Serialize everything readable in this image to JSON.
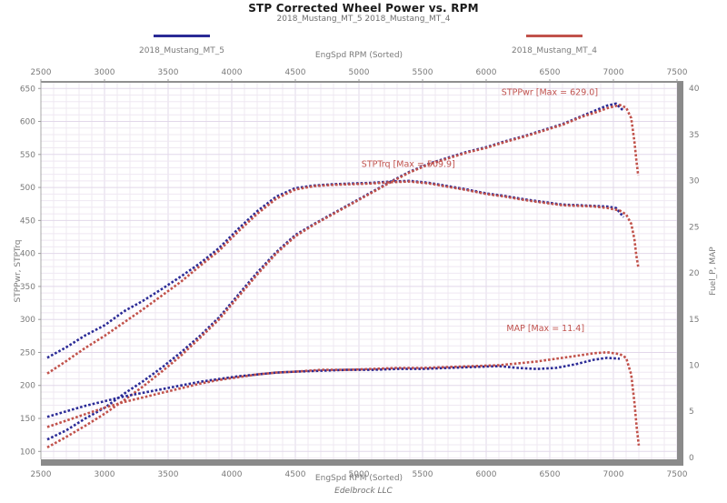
{
  "header": {
    "title": "STP Corrected Wheel Power vs. RPM",
    "subtitle": "2018_Mustang_MT_5 2018_Mustang_MT_4"
  },
  "footer": {
    "text": "Edelbrock LLC"
  },
  "chart_data": {
    "type": "scatter",
    "title": "STP Corrected Wheel Power vs. RPM",
    "subtitle": "2018_Mustang_MT_5 2018_Mustang_MT_4",
    "xlabel_top": "EngSpd RPM  (Sorted)",
    "xlabel_bottom": "EngSpd RPM  (Sorted)",
    "ylabel_left": "STPPwr, STPTrq",
    "ylabel_right": "Fuel_P, MAP",
    "grid": true,
    "legend_position": "top",
    "legend": [
      {
        "label": "2018_Mustang_MT_5",
        "color": "#2b2b96"
      },
      {
        "label": "2018_Mustang_MT_4",
        "color": "#c1524b"
      }
    ],
    "x_axis": {
      "min": 2500,
      "max": 7500,
      "ticks": [
        2500,
        3000,
        3500,
        4000,
        4500,
        5000,
        5500,
        6000,
        6500,
        7000,
        7500
      ],
      "minor_step": 100
    },
    "left_axis": {
      "min": 88,
      "max": 660,
      "ticks": [
        100,
        150,
        200,
        250,
        300,
        350,
        400,
        450,
        500,
        550,
        600,
        650
      ],
      "minor_step": 10
    },
    "right_axis": {
      "min": -0.2,
      "max": 40.7,
      "ticks": [
        0,
        5,
        10,
        15,
        20,
        25,
        30,
        35,
        40
      ]
    },
    "annotations": [
      {
        "text": "STPPwr  [Max = 629.0]",
        "x": 6120,
        "y": 640,
        "axis": "left",
        "color": "#c0524e"
      },
      {
        "text": "STPTrq  [Max = 509.9]",
        "x": 5020,
        "y": 531,
        "axis": "left",
        "color": "#c0524e"
      },
      {
        "text": "MAP   [Max = 11.4]",
        "x": 6160,
        "y": 13.7,
        "axis": "right",
        "color": "#c0524e"
      }
    ],
    "series": [
      {
        "name": "STPPwr 2018_Mustang_MT_5",
        "axis": "left",
        "color": "#2b2b96",
        "points": [
          [
            2550,
            118
          ],
          [
            2700,
            132
          ],
          [
            2850,
            150
          ],
          [
            3000,
            166
          ],
          [
            3150,
            187
          ],
          [
            3300,
            206
          ],
          [
            3450,
            227
          ],
          [
            3600,
            250
          ],
          [
            3750,
            275
          ],
          [
            3900,
            303
          ],
          [
            4050,
            337
          ],
          [
            4200,
            371
          ],
          [
            4350,
            402
          ],
          [
            4500,
            428
          ],
          [
            4650,
            445
          ],
          [
            4800,
            461
          ],
          [
            4950,
            477
          ],
          [
            5100,
            493
          ],
          [
            5250,
            509
          ],
          [
            5400,
            524
          ],
          [
            5550,
            536
          ],
          [
            5700,
            545
          ],
          [
            5850,
            554
          ],
          [
            6000,
            561
          ],
          [
            6150,
            570
          ],
          [
            6300,
            578
          ],
          [
            6450,
            587
          ],
          [
            6600,
            596
          ],
          [
            6750,
            608
          ],
          [
            6850,
            616
          ],
          [
            6950,
            624
          ],
          [
            7020,
            627
          ],
          [
            7080,
            616
          ]
        ]
      },
      {
        "name": "STPPwr 2018_Mustang_MT_4",
        "axis": "left",
        "color": "#c1524b",
        "points": [
          [
            2550,
            106
          ],
          [
            2700,
            122
          ],
          [
            2850,
            139
          ],
          [
            3000,
            157
          ],
          [
            3150,
            177
          ],
          [
            3300,
            198
          ],
          [
            3450,
            221
          ],
          [
            3600,
            245
          ],
          [
            3750,
            272
          ],
          [
            3900,
            300
          ],
          [
            4050,
            334
          ],
          [
            4200,
            368
          ],
          [
            4350,
            400
          ],
          [
            4500,
            426
          ],
          [
            4650,
            444
          ],
          [
            4800,
            460
          ],
          [
            4950,
            476
          ],
          [
            5100,
            492
          ],
          [
            5250,
            508
          ],
          [
            5400,
            523
          ],
          [
            5550,
            535
          ],
          [
            5700,
            544
          ],
          [
            5850,
            553
          ],
          [
            6000,
            560
          ],
          [
            6150,
            569
          ],
          [
            6300,
            577
          ],
          [
            6450,
            586
          ],
          [
            6600,
            595
          ],
          [
            6750,
            607
          ],
          [
            6850,
            613
          ],
          [
            6950,
            620
          ],
          [
            7050,
            625
          ],
          [
            7100,
            621
          ],
          [
            7140,
            605
          ],
          [
            7165,
            570
          ],
          [
            7180,
            542
          ],
          [
            7195,
            518
          ]
        ]
      },
      {
        "name": "STPTrq 2018_Mustang_MT_5",
        "axis": "left",
        "color": "#2b2b96",
        "points": [
          [
            2550,
            242
          ],
          [
            2700,
            258
          ],
          [
            2850,
            276
          ],
          [
            3000,
            291
          ],
          [
            3150,
            312
          ],
          [
            3300,
            328
          ],
          [
            3450,
            346
          ],
          [
            3600,
            365
          ],
          [
            3750,
            385
          ],
          [
            3900,
            408
          ],
          [
            4050,
            437
          ],
          [
            4200,
            464
          ],
          [
            4350,
            486
          ],
          [
            4500,
            499
          ],
          [
            4650,
            503
          ],
          [
            4800,
            505
          ],
          [
            4950,
            506
          ],
          [
            5100,
            507
          ],
          [
            5250,
            509
          ],
          [
            5400,
            510
          ],
          [
            5550,
            507
          ],
          [
            5700,
            502
          ],
          [
            5850,
            497
          ],
          [
            6000,
            491
          ],
          [
            6150,
            487
          ],
          [
            6300,
            482
          ],
          [
            6450,
            478
          ],
          [
            6600,
            474
          ],
          [
            6750,
            473
          ],
          [
            6850,
            472
          ],
          [
            6950,
            471
          ],
          [
            7020,
            469
          ],
          [
            7080,
            455
          ]
        ]
      },
      {
        "name": "STPTrq 2018_Mustang_MT_4",
        "axis": "left",
        "color": "#c1524b",
        "points": [
          [
            2550,
            218
          ],
          [
            2700,
            237
          ],
          [
            2850,
            257
          ],
          [
            3000,
            275
          ],
          [
            3150,
            295
          ],
          [
            3300,
            315
          ],
          [
            3450,
            336
          ],
          [
            3600,
            357
          ],
          [
            3750,
            381
          ],
          [
            3900,
            404
          ],
          [
            4050,
            433
          ],
          [
            4200,
            460
          ],
          [
            4350,
            483
          ],
          [
            4500,
            497
          ],
          [
            4650,
            502
          ],
          [
            4800,
            504
          ],
          [
            4950,
            505
          ],
          [
            5100,
            506
          ],
          [
            5250,
            508
          ],
          [
            5400,
            509
          ],
          [
            5550,
            506
          ],
          [
            5700,
            501
          ],
          [
            5850,
            496
          ],
          [
            6000,
            490
          ],
          [
            6150,
            486
          ],
          [
            6300,
            481
          ],
          [
            6450,
            477
          ],
          [
            6600,
            473
          ],
          [
            6750,
            472
          ],
          [
            6850,
            471
          ],
          [
            6950,
            469
          ],
          [
            7050,
            465
          ],
          [
            7100,
            459
          ],
          [
            7140,
            445
          ],
          [
            7165,
            422
          ],
          [
            7180,
            397
          ],
          [
            7195,
            380
          ]
        ]
      },
      {
        "name": "MAP 2018_Mustang_MT_5",
        "axis": "right",
        "color": "#2b2b96",
        "points": [
          [
            2550,
            4.4
          ],
          [
            2700,
            5.0
          ],
          [
            2850,
            5.6
          ],
          [
            3000,
            6.1
          ],
          [
            3150,
            6.6
          ],
          [
            3300,
            7.0
          ],
          [
            3450,
            7.4
          ],
          [
            3600,
            7.8
          ],
          [
            3750,
            8.2
          ],
          [
            3900,
            8.5
          ],
          [
            4050,
            8.8
          ],
          [
            4200,
            9.0
          ],
          [
            4350,
            9.2
          ],
          [
            4500,
            9.3
          ],
          [
            4700,
            9.4
          ],
          [
            4900,
            9.5
          ],
          [
            5100,
            9.5
          ],
          [
            5300,
            9.6
          ],
          [
            5500,
            9.6
          ],
          [
            5700,
            9.7
          ],
          [
            5900,
            9.8
          ],
          [
            6100,
            9.9
          ],
          [
            6250,
            9.7
          ],
          [
            6400,
            9.6
          ],
          [
            6550,
            9.7
          ],
          [
            6700,
            10.1
          ],
          [
            6850,
            10.6
          ],
          [
            6950,
            10.8
          ],
          [
            7050,
            10.7
          ]
        ]
      },
      {
        "name": "MAP 2018_Mustang_MT_4",
        "axis": "right",
        "color": "#c1524b",
        "points": [
          [
            2550,
            3.3
          ],
          [
            2700,
            4.0
          ],
          [
            2850,
            4.7
          ],
          [
            3000,
            5.4
          ],
          [
            3150,
            6.0
          ],
          [
            3300,
            6.5
          ],
          [
            3450,
            7.0
          ],
          [
            3600,
            7.5
          ],
          [
            3750,
            8.0
          ],
          [
            3900,
            8.4
          ],
          [
            4050,
            8.7
          ],
          [
            4200,
            9.0
          ],
          [
            4350,
            9.2
          ],
          [
            4500,
            9.3
          ],
          [
            4700,
            9.5
          ],
          [
            4900,
            9.5
          ],
          [
            5100,
            9.6
          ],
          [
            5300,
            9.7
          ],
          [
            5500,
            9.7
          ],
          [
            5700,
            9.8
          ],
          [
            5900,
            9.9
          ],
          [
            6100,
            10.0
          ],
          [
            6250,
            10.2
          ],
          [
            6400,
            10.4
          ],
          [
            6550,
            10.7
          ],
          [
            6700,
            11.0
          ],
          [
            6850,
            11.3
          ],
          [
            6950,
            11.4
          ],
          [
            7050,
            11.2
          ],
          [
            7100,
            10.8
          ],
          [
            7140,
            9.0
          ],
          [
            7165,
            6.0
          ],
          [
            7185,
            3.0
          ],
          [
            7200,
            1.3
          ]
        ]
      }
    ],
    "colors": {
      "grid_minor": "#efe8f2",
      "grid_major": "#e2d8ea",
      "axis_bar": "#8a8a8a",
      "tick_text": "#7a7a7a",
      "border_thin": "#a8a8a8"
    }
  }
}
